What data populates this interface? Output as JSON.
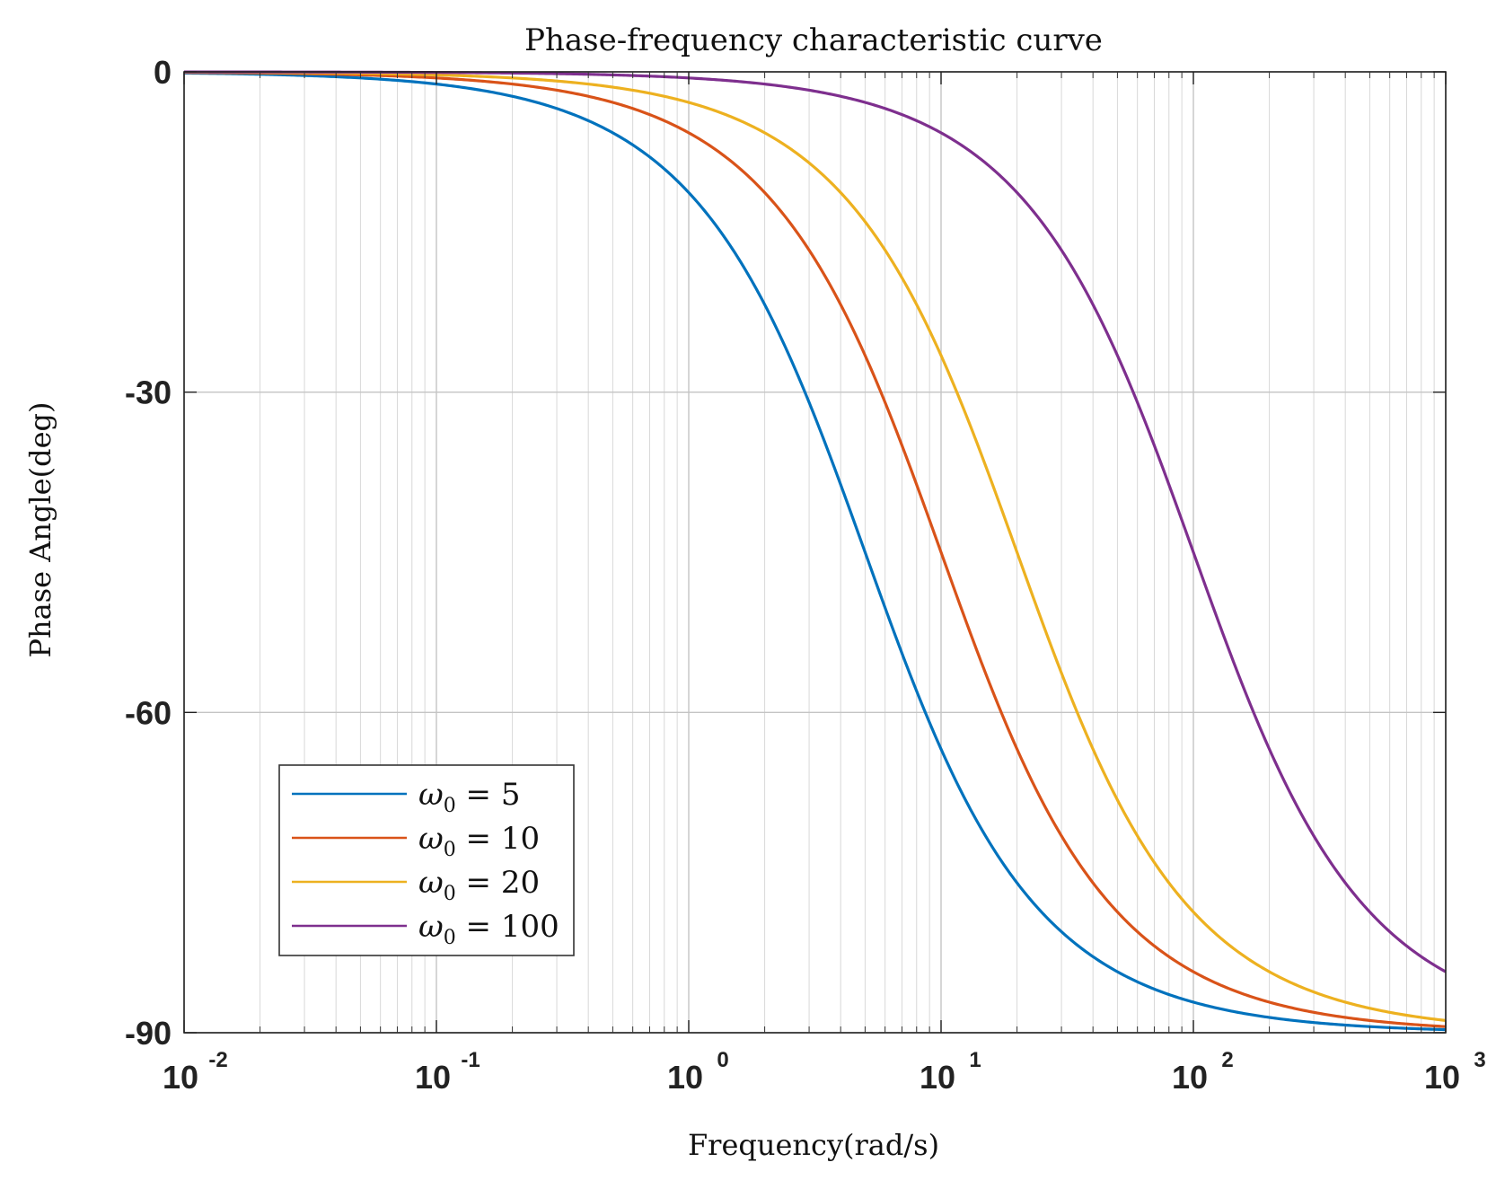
{
  "chart_data": {
    "type": "line",
    "title": "Phase-frequency characteristic curve",
    "xlabel": "Frequency(rad/s)",
    "ylabel": "Phase Angle(deg)",
    "xscale": "log",
    "xlim": [
      0.01,
      1000
    ],
    "ylim": [
      -90,
      0
    ],
    "grid": true,
    "x_ticks": [
      {
        "value": 0.01,
        "base": "10",
        "exp": "-2"
      },
      {
        "value": 0.1,
        "base": "10",
        "exp": "-1"
      },
      {
        "value": 1,
        "base": "10",
        "exp": "0"
      },
      {
        "value": 10,
        "base": "10",
        "exp": "1"
      },
      {
        "value": 100,
        "base": "10",
        "exp": "2"
      },
      {
        "value": 1000,
        "base": "10",
        "exp": "3"
      }
    ],
    "y_ticks": [
      {
        "value": 0,
        "label": "0"
      },
      {
        "value": -30,
        "label": "-30"
      },
      {
        "value": -60,
        "label": "-60"
      },
      {
        "value": -90,
        "label": "-90"
      }
    ],
    "legend_position": "lower-left",
    "phase_model": "phase = -atan(w / w0)",
    "series": [
      {
        "name": "ω0 = 5",
        "symbol": "ω",
        "subscript": "0",
        "eq": "= 5",
        "w0": 5,
        "color": "#0072BD"
      },
      {
        "name": "ω0 = 10",
        "symbol": "ω",
        "subscript": "0",
        "eq": "= 10",
        "w0": 10,
        "color": "#D95319"
      },
      {
        "name": "ω0 = 20",
        "symbol": "ω",
        "subscript": "0",
        "eq": "= 20",
        "w0": 20,
        "color": "#EDB120"
      },
      {
        "name": "ω0 = 100",
        "symbol": "ω",
        "subscript": "0",
        "eq": "= 100",
        "w0": 100,
        "color": "#7E2F8E"
      }
    ]
  }
}
